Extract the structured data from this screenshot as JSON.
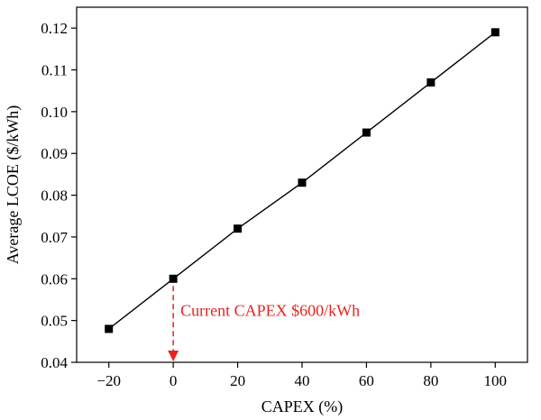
{
  "chart_data": {
    "type": "line",
    "xlabel": "CAPEX (%)",
    "ylabel": "Average LCOE ($/kWh)",
    "xlim": [
      -30,
      110
    ],
    "ylim": [
      0.04,
      0.125
    ],
    "x_ticks": [
      -20,
      0,
      20,
      40,
      60,
      80,
      100
    ],
    "x_tick_labels": [
      "−20",
      "0",
      "20",
      "40",
      "60",
      "80",
      "100"
    ],
    "y_ticks": [
      0.04,
      0.05,
      0.06,
      0.07,
      0.08,
      0.09,
      0.1,
      0.11,
      0.12
    ],
    "y_tick_labels": [
      "0.04",
      "0.05",
      "0.06",
      "0.07",
      "0.08",
      "0.09",
      "0.10",
      "0.11",
      "0.12"
    ],
    "grid": false,
    "series": [
      {
        "x": [
          -20,
          0,
          20,
          40,
          60,
          80,
          100
        ],
        "y": [
          0.048,
          0.06,
          0.072,
          0.083,
          0.095,
          0.107,
          0.119
        ],
        "color": "#000000",
        "marker": "square"
      }
    ],
    "annotation": {
      "text": "Current CAPEX $600/kWh",
      "x": 0,
      "y_from": 0.06,
      "y_to": 0.04,
      "color": "#e8231e"
    }
  }
}
